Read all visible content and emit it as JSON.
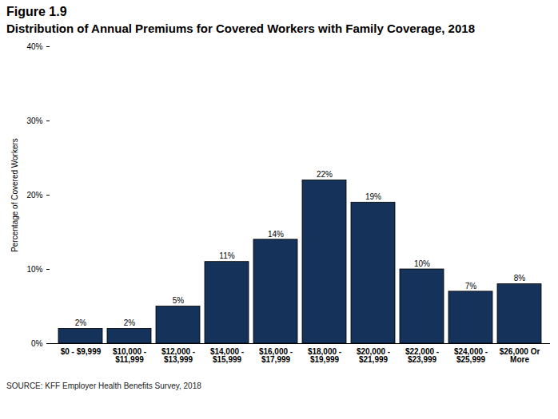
{
  "chart_data": {
    "type": "bar",
    "title": "Figure 1.9",
    "subtitle": "Distribution of Annual Premiums for Covered Workers with Family Coverage, 2018",
    "caption": "SOURCE: KFF Employer Health Benefits Survey, 2018",
    "y_label": "Percentage of Covered Workers",
    "categories": [
      "$0 - $9,999",
      "$10,000 -\n$11,999",
      "$12,000 -\n$13,999",
      "$14,000 -\n$15,999",
      "$16,000 -\n$17,999",
      "$18,000 -\n$19,999",
      "$20,000 -\n$21,999",
      "$22,000 -\n$23,999",
      "$24,000 -\n$25,999",
      "$26,000 Or\nMore"
    ],
    "values": [
      2,
      2,
      5,
      11,
      14,
      22,
      19,
      10,
      7,
      8
    ],
    "value_labels": [
      "2%",
      "2%",
      "5%",
      "11%",
      "14%",
      "22%",
      "19%",
      "10%",
      "7%",
      "8%"
    ],
    "color": "#15335a",
    "ylim": [
      0,
      40
    ],
    "yticks": [
      {
        "value": 0,
        "label": "0%"
      },
      {
        "value": 10,
        "label": "10%"
      },
      {
        "value": 20,
        "label": "20%"
      },
      {
        "value": 30,
        "label": "30%"
      },
      {
        "value": 40,
        "label": "40%"
      }
    ],
    "grid": false,
    "data_labels": true
  }
}
